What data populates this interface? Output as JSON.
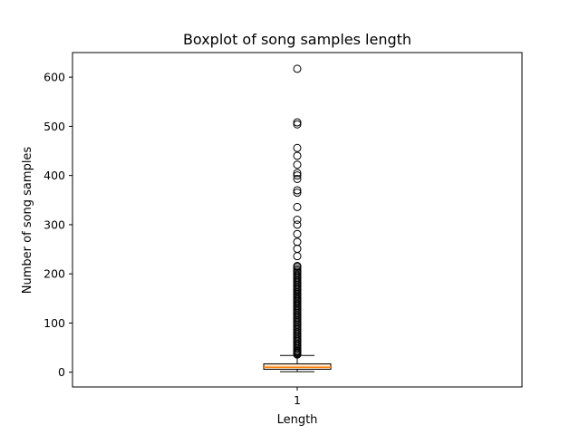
{
  "chart_data": {
    "type": "box",
    "title": "Boxplot of song samples length",
    "xlabel": "Length",
    "ylabel": "Number of song samples",
    "categories": [
      "1"
    ],
    "ylim": [
      -30,
      650
    ],
    "yticks": [
      0,
      100,
      200,
      300,
      400,
      500,
      600
    ],
    "grid": false,
    "colors": {
      "box": "#ffe4c4",
      "median": "#ff7f0e",
      "line": "#000000"
    },
    "box": {
      "whisker_low": 1,
      "q1": 6,
      "median": 10,
      "q3": 17,
      "whisker_high": 34
    },
    "outliers": [
      617,
      508,
      504,
      456,
      440,
      422,
      405,
      400,
      393,
      370,
      365,
      336,
      310,
      300,
      281,
      265,
      251,
      236,
      216,
      214,
      210,
      207,
      204,
      201,
      198,
      195,
      192,
      189,
      186,
      183,
      180,
      177,
      174,
      171,
      168,
      165,
      162,
      159,
      156,
      153,
      150,
      147,
      144,
      141,
      138,
      135,
      132,
      129,
      126,
      123,
      120,
      117,
      114,
      111,
      108,
      105,
      102,
      99,
      96,
      93,
      90,
      87,
      84,
      81,
      78,
      75,
      72,
      69,
      66,
      63,
      60,
      57,
      54,
      51,
      48,
      45,
      43,
      41,
      39,
      37,
      36
    ]
  }
}
